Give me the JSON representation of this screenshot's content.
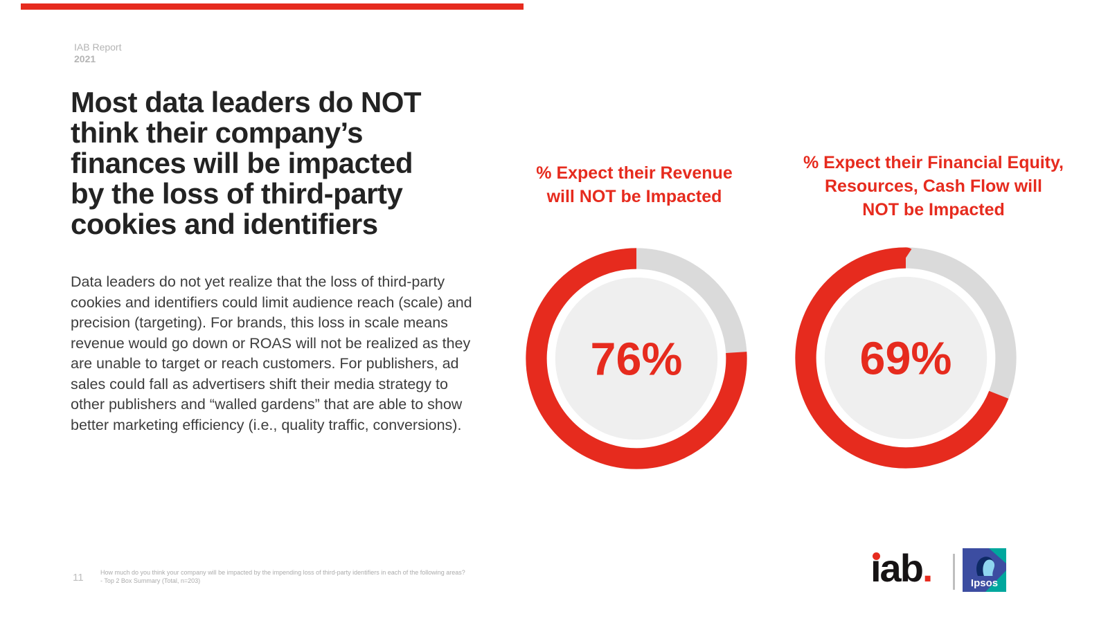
{
  "header": {
    "report_label": "IAB Report",
    "report_year": "2021"
  },
  "headline": "Most data leaders do NOT\nthink their company’s\nfinances will be impacted\nby the loss of third-party\ncookies and identifiers",
  "body": "Data leaders do not yet realize that the loss of third-party cookies and identifiers could limit audience reach (scale) and precision (targeting). For brands, this loss in scale means revenue would go down or ROAS will not be realized as they are unable to target or reach customers. For publishers, ad sales could fall as advertisers shift their media strategy to other publishers and “walled gardens” that are able to show better marketing efficiency (i.e., quality traffic, conversions).",
  "chart_data": [
    {
      "type": "pie",
      "subtype": "donut",
      "title": "% Expect their Revenue\nwill NOT be Impacted",
      "value": 76,
      "center_label": "76%",
      "inner_color": "#EFEFEF",
      "start_angle": "12 o'clock, filled arc runs counterclockwise",
      "slices": [
        {
          "name": "Expect revenue will NOT be impacted",
          "value": 76,
          "color": "#E62B1E"
        },
        {
          "name": "Remainder",
          "value": 24,
          "color": "#DADADA"
        }
      ]
    },
    {
      "type": "pie",
      "subtype": "donut",
      "title": "% Expect their Financial Equity,\nResources, Cash Flow will\nNOT be Impacted",
      "value": 69,
      "center_label": "69%",
      "inner_color": "#EFEFEF",
      "start_angle": "12 o'clock, filled arc runs counterclockwise",
      "slices": [
        {
          "name": "Expect financial equity/resources/cash flow will NOT be impacted",
          "value": 69,
          "color": "#E62B1E"
        },
        {
          "name": "Remainder",
          "value": 31,
          "color": "#DADADA"
        }
      ]
    }
  ],
  "footer": {
    "page_number": "11",
    "footnote_line1": "How much do you think your company will be impacted by the impending loss of third-party identifiers in each of the following areas?",
    "footnote_line2": "- Top 2 Box Summary (Total, n=203)"
  },
  "logos": {
    "iab_text": "ıab",
    "iab_period": ".",
    "ipsos_text": "Ipsos"
  },
  "colors": {
    "accent_red": "#E62B1E",
    "headline_text": "#232323",
    "body_text": "#3D3D3D",
    "muted_gray": "#B4B4B4",
    "ring_gray": "#DADADA",
    "donut_inner": "#EFEFEF",
    "ipsos_blue": "#3C4DA1",
    "ipsos_teal": "#00A79D"
  }
}
